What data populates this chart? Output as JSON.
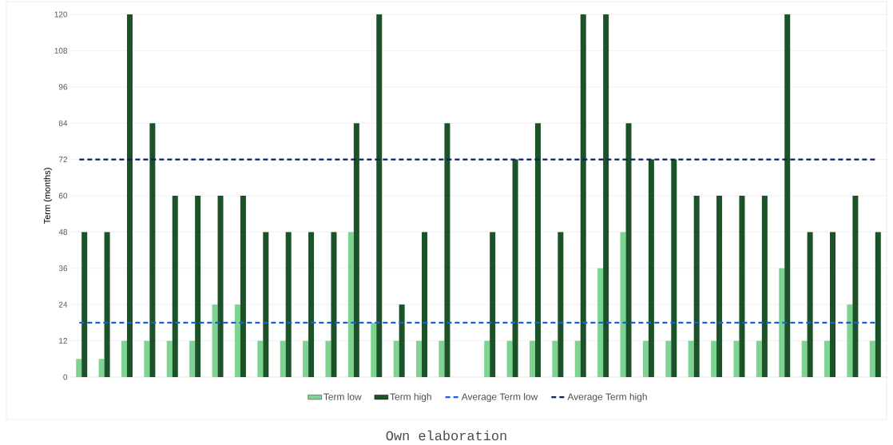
{
  "chart_data": {
    "type": "bar",
    "ylabel": "Term (months)",
    "categories": [
      null,
      null,
      null,
      null,
      null,
      null,
      null,
      null,
      null,
      null,
      null,
      null,
      null,
      null,
      null,
      null,
      null,
      null,
      null,
      null,
      null,
      null,
      null,
      null,
      null,
      null,
      null,
      null,
      null,
      null,
      null,
      null,
      null,
      null,
      null,
      null
    ],
    "series": [
      {
        "name": "Term low",
        "color": "#7dd491",
        "values": [
          6,
          6,
          12,
          12,
          12,
          12,
          24,
          24,
          12,
          12,
          12,
          12,
          48,
          18,
          12,
          12,
          12,
          null,
          12,
          12,
          12,
          12,
          12,
          36,
          48,
          12,
          12,
          12,
          12,
          12,
          12,
          36,
          12,
          12,
          24,
          12
        ]
      },
      {
        "name": "Term high",
        "color": "#1b5227",
        "values": [
          48,
          48,
          120,
          84,
          60,
          60,
          60,
          60,
          48,
          48,
          48,
          48,
          84,
          120,
          24,
          48,
          84,
          null,
          48,
          72,
          84,
          48,
          120,
          120,
          84,
          72,
          72,
          60,
          60,
          60,
          60,
          120,
          48,
          48,
          60,
          48
        ]
      }
    ],
    "ref_lines": [
      {
        "axis": "y",
        "value": 18,
        "label": "Average Term low",
        "color": "#1a5fe0",
        "line_style": "dashed"
      },
      {
        "axis": "y",
        "value": 72,
        "label": "Average Term high",
        "color": "#0b1f5c",
        "line_style": "dashed"
      }
    ],
    "ylim": [
      0,
      120
    ],
    "yticks": [
      0,
      12,
      24,
      36,
      48,
      60,
      72,
      84,
      96,
      108,
      120
    ],
    "grid": "y",
    "legend": "bottom",
    "annotations": [
      "Own elaboration"
    ]
  }
}
